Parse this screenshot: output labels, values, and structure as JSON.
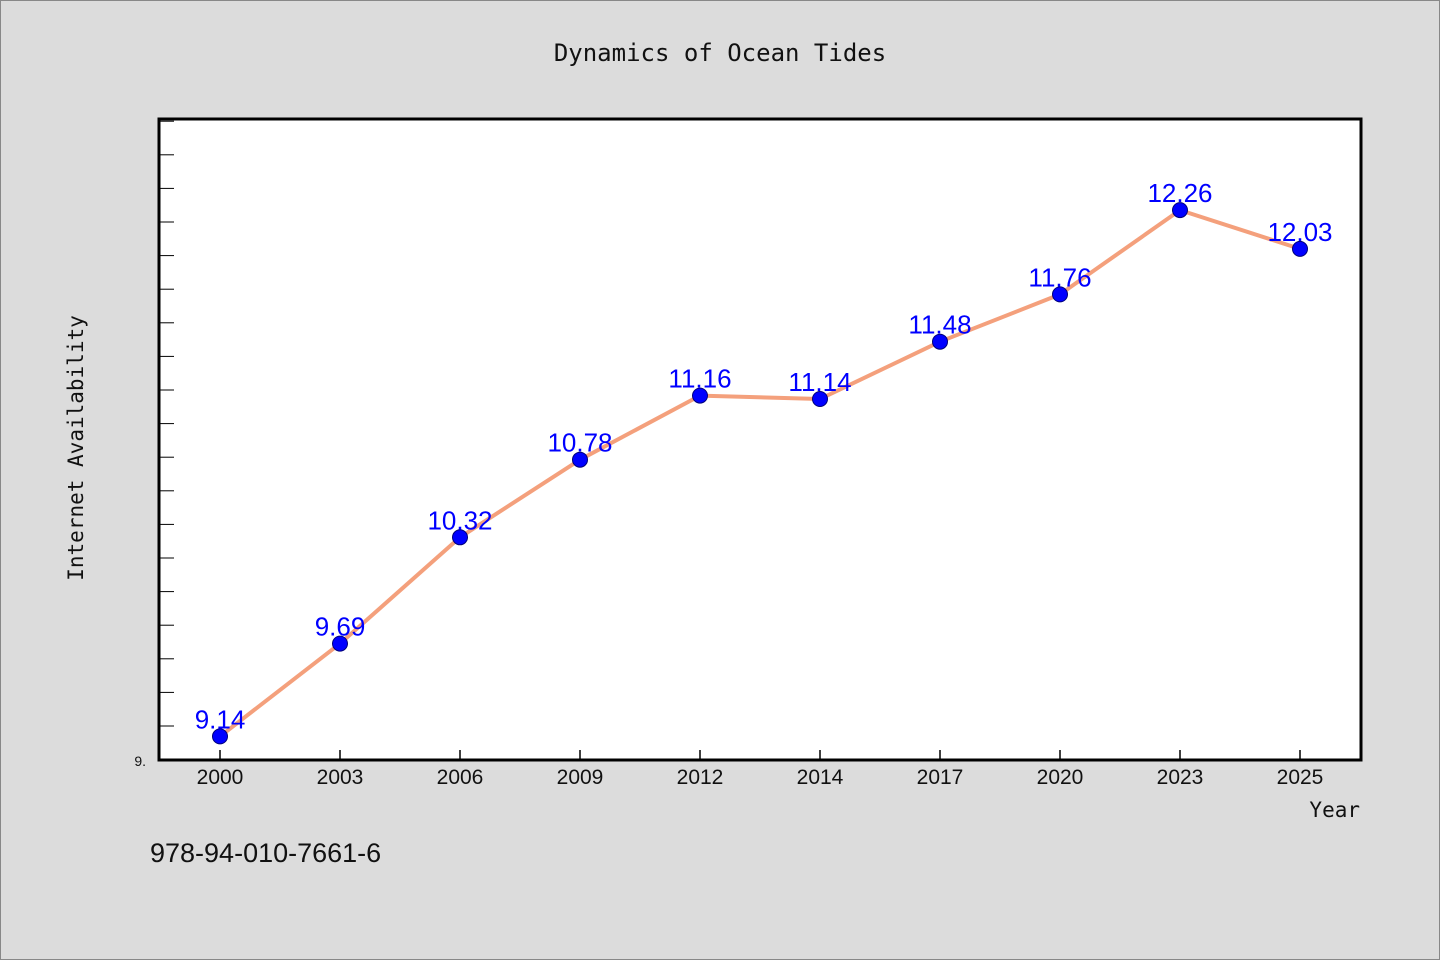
{
  "chart_data": {
    "type": "line",
    "title": "Dynamics of Ocean Tides",
    "xlabel": "Year",
    "ylabel": "Internet Availability",
    "categories": [
      "2000",
      "2003",
      "2006",
      "2009",
      "2012",
      "2014",
      "2017",
      "2020",
      "2023",
      "2025"
    ],
    "values": [
      9.14,
      9.69,
      10.32,
      10.78,
      11.16,
      11.14,
      11.48,
      11.76,
      12.26,
      12.03
    ],
    "data_labels": [
      "9.14",
      "9.69",
      "10.32",
      "10.78",
      "11.16",
      "11.14",
      "11.48",
      "11.76",
      "12.26",
      "12.03"
    ],
    "y_tick_labels": [
      "9."
    ],
    "ylim": [
      9.0,
      12.8
    ],
    "grid": false,
    "legend": "none",
    "colors": {
      "line": "#f4a07c",
      "marker": "#0000ff",
      "data_label": "#0000ff",
      "plot_background": "#ffffff",
      "page_background": "#dcdcdc"
    }
  },
  "footer_text": "978-94-010-7661-6"
}
